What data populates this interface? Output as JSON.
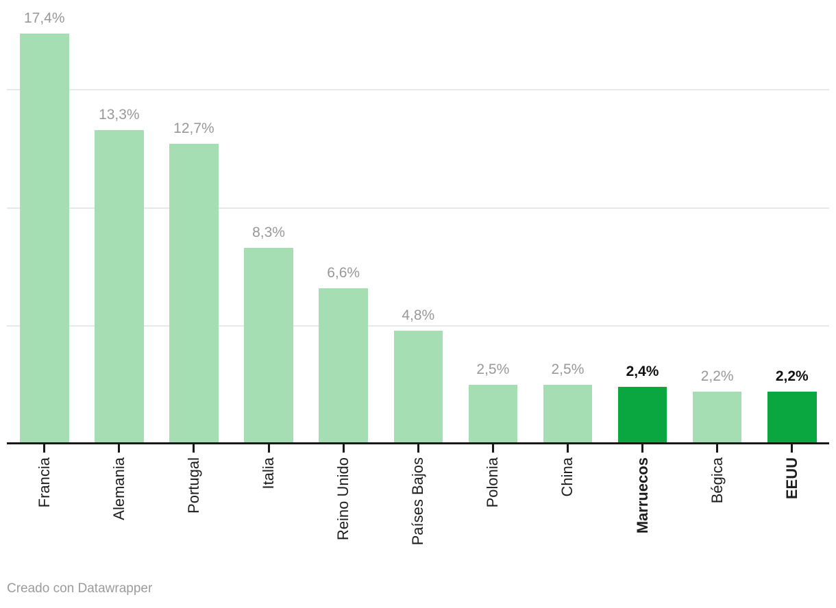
{
  "chart_data": {
    "type": "bar",
    "title": "",
    "xlabel": "",
    "ylabel": "",
    "categories": [
      "Francia",
      "Alemania",
      "Portugal",
      "Italia",
      "Reino Unido",
      "Países Bajos",
      "Polonia",
      "China",
      "Marruecos",
      "Bégica",
      "EEUU"
    ],
    "values": [
      17.4,
      13.3,
      12.7,
      8.3,
      6.6,
      4.8,
      2.5,
      2.5,
      2.4,
      2.2,
      2.2
    ],
    "value_labels": [
      "17,4%",
      "13,3%",
      "12,7%",
      "8,3%",
      "6,6%",
      "4,8%",
      "2,5%",
      "2,5%",
      "2,4%",
      "2,2%",
      "2,2%"
    ],
    "highlighted": [
      false,
      false,
      false,
      false,
      false,
      false,
      false,
      false,
      true,
      false,
      true
    ],
    "ylim": [
      0,
      17.4
    ],
    "gridlines": [
      5,
      10,
      15
    ],
    "grid": "horizontal, unlabeled ticks",
    "legend": "none",
    "unit": "%",
    "colors": {
      "bar": "#a5deb3",
      "highlight_bar": "#0aa63f",
      "value_label": "#989898",
      "value_label_highlight": "#111111",
      "axis_label": "#1d1d1d",
      "axis_line": "#181818",
      "gridline": "#e8e8e8",
      "attribution": "#9b9b9b"
    }
  },
  "footer": {
    "attribution": "Creado con Datawrapper"
  }
}
